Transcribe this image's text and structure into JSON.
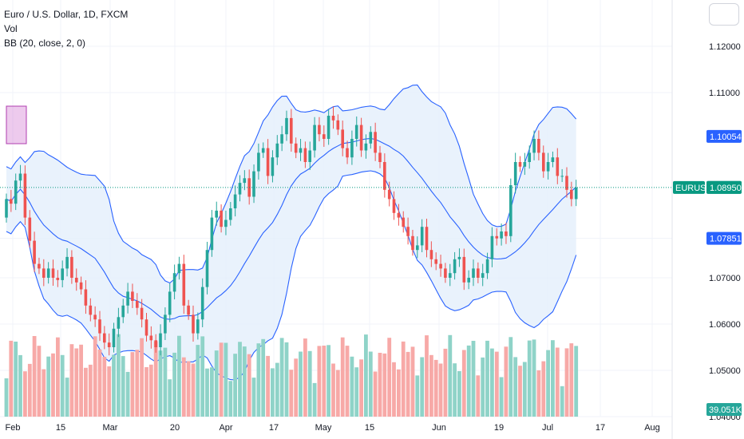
{
  "legend": {
    "title": "Euro / U.S. Dollar, 1D, FXCM",
    "vol": "Vol",
    "bb": "BB (20, close, 2, 0)"
  },
  "colors": {
    "up": "#26a69a",
    "down": "#ef5350",
    "up_vol": "#8fd3c8",
    "down_vol": "#f7a9a7",
    "band": "#2962ff",
    "band_fill": "#e3effb",
    "price_line": "#089981",
    "grid": "#f0f3fa",
    "highlight": "#cc66cc"
  },
  "chart_data": {
    "type": "candlestick",
    "symbol": "EURUSD",
    "price_axis": {
      "ticks": [
        "1.12000",
        "1.11000",
        "1.10054",
        "1.08953",
        "1.07851",
        "1.07000",
        "1.06000",
        "1.05000",
        "1.04000"
      ],
      "range": [
        1.0365,
        1.1255
      ]
    },
    "x_ticks": [
      "Feb",
      "15",
      "Mar",
      "20",
      "Apr",
      "17",
      "May",
      "15",
      "Jun",
      "19",
      "Jul",
      "17",
      "Aug"
    ],
    "price_tags": [
      {
        "label": "1.10054",
        "value": 1.10054,
        "color": "#2962ff"
      },
      {
        "label": "1.08953",
        "value": 1.08953,
        "color": "#089981"
      },
      {
        "label": "1.07851",
        "value": 1.07851,
        "color": "#2962ff"
      }
    ],
    "current": {
      "symbol": "EURUSD",
      "label": "1.08950",
      "value": 1.0895
    },
    "volume_tag": "39.051K",
    "closes": [
      1.087,
      1.086,
      1.091,
      1.0925,
      1.083,
      1.078,
      1.073,
      1.072,
      1.07,
      1.072,
      1.07,
      1.0695,
      1.072,
      1.0745,
      1.07,
      1.069,
      1.0675,
      1.064,
      1.062,
      1.061,
      1.058,
      1.056,
      1.055,
      1.059,
      1.0615,
      1.064,
      1.067,
      1.065,
      1.0635,
      1.061,
      1.0575,
      1.0565,
      1.055,
      1.058,
      1.062,
      1.067,
      1.071,
      1.073,
      1.064,
      1.062,
      1.058,
      1.061,
      1.068,
      1.076,
      1.083,
      1.0845,
      1.081,
      1.0825,
      1.085,
      1.088,
      1.0905,
      1.0915,
      1.0875,
      1.093,
      1.097,
      1.098,
      1.092,
      1.096,
      1.099,
      1.101,
      1.1045,
      1.099,
      1.097,
      1.098,
      1.095,
      1.0975,
      1.103,
      1.101,
      1.1,
      1.105,
      1.104,
      1.102,
      1.098,
      1.096,
      1.1,
      1.103,
      1.0975,
      1.099,
      1.1015,
      1.097,
      1.095,
      1.089,
      1.087,
      1.084,
      1.083,
      1.081,
      1.079,
      1.076,
      1.077,
      1.081,
      1.076,
      1.074,
      1.073,
      1.072,
      1.07,
      1.071,
      1.074,
      1.0745,
      1.069,
      1.07,
      1.072,
      1.07,
      1.071,
      1.074,
      1.079,
      1.0785,
      1.08,
      1.079,
      1.09,
      1.095,
      1.094,
      1.095,
      1.097,
      1.1,
      1.097,
      1.093,
      1.095,
      1.096,
      1.092,
      1.092,
      1.089,
      1.087,
      1.0895
    ],
    "volume_axis_max": 94
  }
}
